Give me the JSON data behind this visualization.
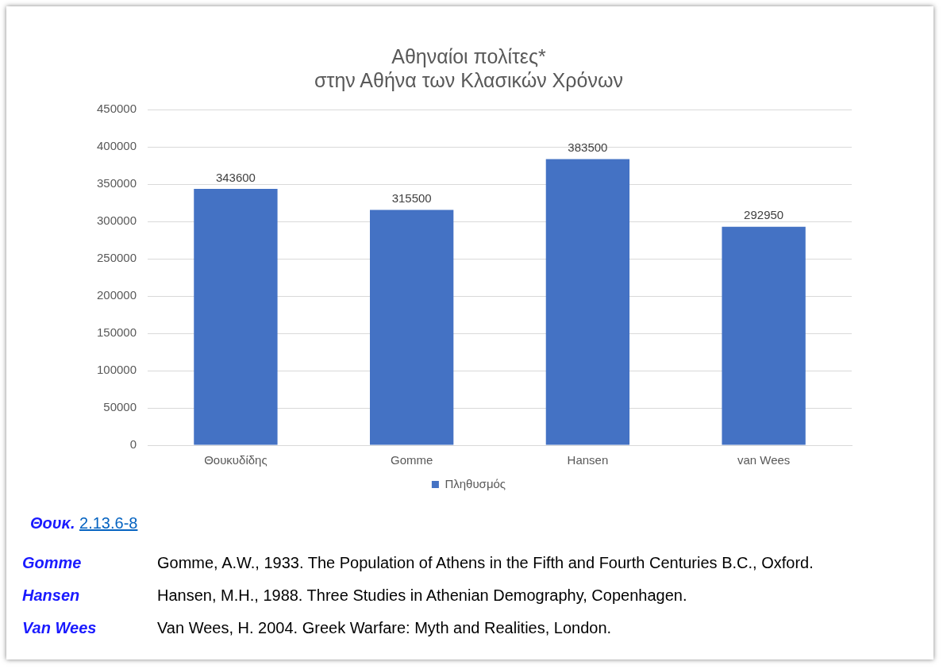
{
  "chart_data": {
    "type": "bar",
    "title": [
      "Αθηναίοι πολίτες*",
      "στην Αθήνα των Κλασικών Χρόνων"
    ],
    "categories": [
      "Θουκυδίδης",
      "Gomme",
      "Hansen",
      "van Wees"
    ],
    "series": [
      {
        "name": "Πληθυσμός",
        "color": "#4472c4",
        "values": [
          343600,
          315500,
          383500,
          292950
        ]
      }
    ],
    "ylim": [
      0,
      450000
    ],
    "yticks": [
      0,
      50000,
      100000,
      150000,
      200000,
      250000,
      300000,
      350000,
      400000,
      450000
    ],
    "grid": "y",
    "legend": "bottom",
    "data_labels": true,
    "annotations": [
      "Θουκ.",
      "2.13.6-8",
      "Gomme",
      "Gomme, A.W., 1933. The Population of Athens in the Fifth and Fourth Centuries B.C., Oxford.",
      "Hansen",
      "Hansen, M.H., 1988. Three Studies in Athenian Demography, Copenhagen.",
      "Van Wees",
      "Van Wees, H. 2004. Greek Warfare: Myth and Realities, London."
    ]
  }
}
